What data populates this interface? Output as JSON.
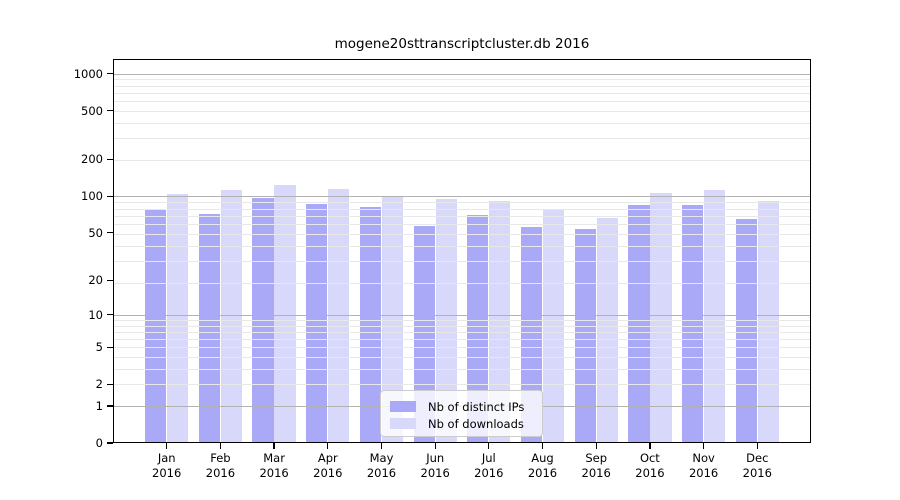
{
  "title": "mogene20sttranscriptcluster.db 2016",
  "chart_data": {
    "type": "bar",
    "title": "mogene20sttranscriptcluster.db 2016",
    "xlabel": "",
    "ylabel": "",
    "year": "2016",
    "categories": [
      "Jan",
      "Feb",
      "Mar",
      "Apr",
      "May",
      "Jun",
      "Jul",
      "Aug",
      "Sep",
      "Oct",
      "Nov",
      "Dec"
    ],
    "series": [
      {
        "name": "Nb of distinct IPs",
        "color": "#a9a9f8",
        "values": [
          77,
          71,
          96,
          87,
          81,
          57,
          70,
          56,
          54,
          84,
          85,
          65
        ]
      },
      {
        "name": "Nb of downloads",
        "color": "#d8d8fa",
        "values": [
          104,
          112,
          124,
          114,
          98,
          94,
          91,
          77,
          66,
          106,
          113,
          92
        ]
      }
    ],
    "yscale": "log10(1+x)",
    "ylim": [
      0,
      1311
    ],
    "yticks": [
      0,
      1,
      2,
      5,
      10,
      20,
      50,
      100,
      200,
      500,
      1000
    ],
    "grid": true,
    "gridline_major_color": "#b2b2b2",
    "gridline_minor_color": "#e8e8e8",
    "legend_position": "lower-center",
    "background": "#ffffff"
  }
}
